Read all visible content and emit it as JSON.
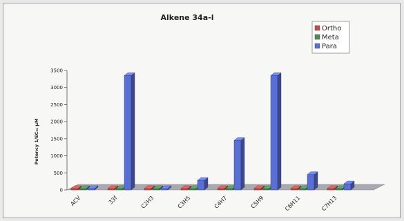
{
  "chart_data": {
    "type": "bar",
    "title": "Alkene 34a-l",
    "ylabel": "Potency 1/EC₅₀ µM",
    "xlabel": "",
    "ylim": [
      0,
      3500
    ],
    "yticks": [
      "0",
      "500",
      "1000",
      "1500",
      "2000",
      "2500",
      "3000",
      "3500"
    ],
    "categories": [
      "ACV",
      "33f",
      "C2H3",
      "C3H5",
      "C4H7",
      "C5H9",
      "C6H11",
      "C7H13"
    ],
    "series": [
      {
        "name": "Ortho",
        "color": "#c0504d",
        "values": [
          0,
          0,
          0,
          0,
          3,
          4,
          0,
          0
        ]
      },
      {
        "name": "Meta",
        "color": "#4f8a5b",
        "values": [
          0,
          0,
          0,
          0,
          3,
          4,
          0,
          0
        ]
      },
      {
        "name": "Para",
        "color": "#5a6fd6",
        "values": [
          2,
          3350,
          2,
          280,
          1450,
          3350,
          450,
          180
        ]
      }
    ],
    "legend_position": "top-right",
    "grid": false
  }
}
